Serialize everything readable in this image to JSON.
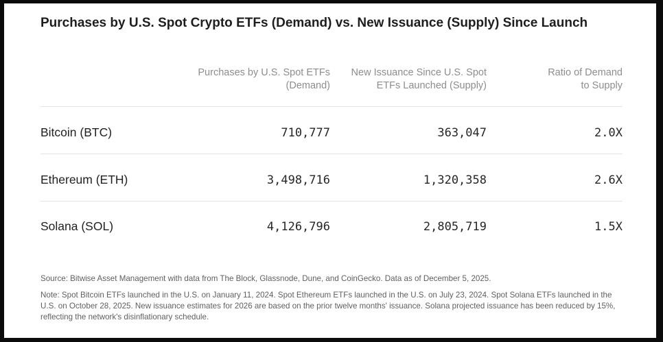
{
  "chart_data": {
    "type": "table",
    "title": "Purchases by U.S. Spot Crypto ETFs (Demand) vs. New Issuance (Supply) Since Launch",
    "columns": [
      "Purchases by U.S. Spot ETFs (Demand)",
      "New Issuance Since U.S. Spot ETFs Launched (Supply)",
      "Ratio of Demand to Supply"
    ],
    "rows": [
      {
        "label": "Bitcoin (BTC)",
        "demand": "710,777",
        "supply": "363,047",
        "ratio": "2.0X"
      },
      {
        "label": "Ethereum (ETH)",
        "demand": "3,498,716",
        "supply": "1,320,358",
        "ratio": "2.6X"
      },
      {
        "label": "Solana (SOL)",
        "demand": "4,126,796",
        "supply": "2,805,719",
        "ratio": "1.5X"
      }
    ]
  },
  "headers": {
    "demand_line1": "Purchases by U.S. Spot ETFs",
    "demand_line2": "(Demand)",
    "supply_line1": "New Issuance Since U.S. Spot",
    "supply_line2": "ETFs Launched (Supply)",
    "ratio_line1": "Ratio of Demand",
    "ratio_line2": "to Supply"
  },
  "footer": {
    "source": "Source: Bitwise Asset Management with data from The Block, Glassnode, Dune, and CoinGecko. Data as of December 5, 2025.",
    "note": "Note: Spot Bitcoin ETFs launched in the U.S. on January 11, 2024. Spot Ethereum ETFs launched in the U.S. on July 23, 2024. Spot Solana ETFs launched in the U.S. on October 28, 2025. New issuance estimates for 2026 are based on the prior twelve months' issuance. Solana projected issuance has been reduced by 15%, reflecting the network's disinflationary schedule."
  }
}
